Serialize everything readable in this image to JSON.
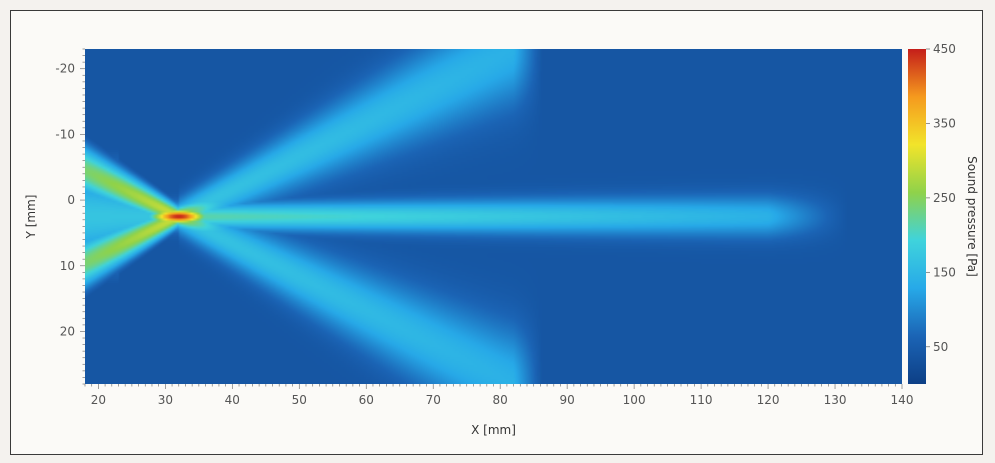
{
  "chart_data": {
    "type": "heatmap",
    "title": "",
    "xlabel": "X [mm]",
    "ylabel": "Y [mm]",
    "colorbar_label": "Sound pressure [Pa]",
    "xlim": [
      18,
      140
    ],
    "ylim": [
      -23,
      28
    ],
    "y_inverted": true,
    "x_ticks": [
      20,
      30,
      40,
      50,
      60,
      70,
      80,
      90,
      100,
      110,
      120,
      130,
      140
    ],
    "y_ticks": [
      -20,
      -10,
      0,
      10,
      20
    ],
    "colorbar_range": [
      0,
      450
    ],
    "colorbar_ticks": [
      50,
      150,
      250,
      350,
      450
    ],
    "colorscale": [
      "#0d3f86",
      "#1b64b5",
      "#27a9e8",
      "#3fd3dc",
      "#8fd24a",
      "#f2e42a",
      "#f59a1e",
      "#c41e1a"
    ],
    "field_features": {
      "source_region_x": [
        18,
        23
      ],
      "focus": {
        "x": 32,
        "y": 2.5,
        "peak_pressure": 450
      },
      "axial_beam": {
        "y": 2.5,
        "x_extent": [
          30,
          132
        ],
        "pressure_near": 220,
        "pressure_far": 130
      },
      "side_lobes": [
        {
          "name": "upper",
          "from": [
            32,
            2.5
          ],
          "to": [
            82,
            -23
          ],
          "pressure": 170
        },
        {
          "name": "lower",
          "from": [
            32,
            2.5
          ],
          "to": [
            82,
            28
          ],
          "pressure": 170
        }
      ],
      "background_pressure": 40
    },
    "legend": "colorbar-right",
    "grid": false
  }
}
